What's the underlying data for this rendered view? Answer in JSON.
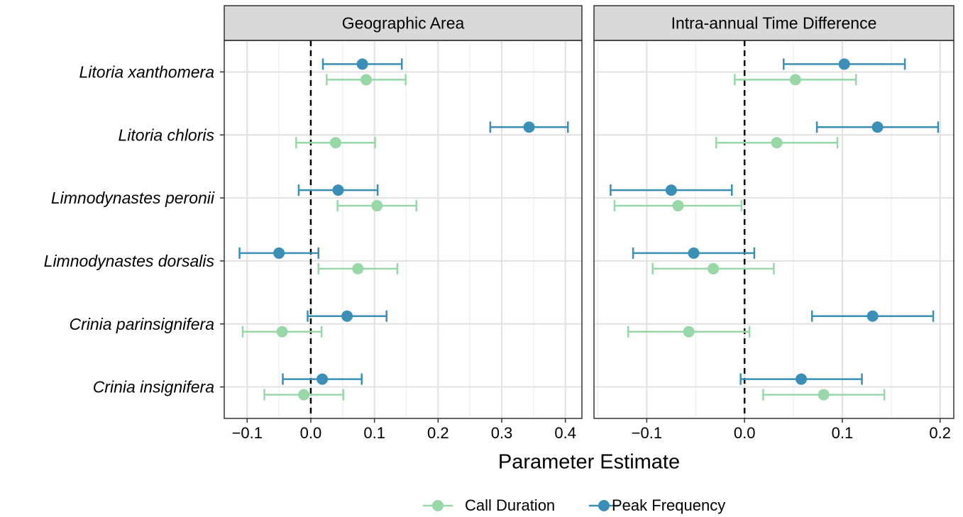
{
  "chart_data": [
    {
      "type": "pointrange",
      "title": "Geographic Area",
      "xlabel": "Parameter Estimate",
      "categories": [
        "Litoria xanthomera",
        "Litoria chloris",
        "Limnodynastes peronii",
        "Limnodynastes dorsalis",
        "Crinia parinsignifera",
        "Crinia insignifera"
      ],
      "series": [
        {
          "name": "Call Duration",
          "color": "#98d8a8",
          "values": [
            0.087,
            0.039,
            0.104,
            0.074,
            -0.045,
            -0.011
          ],
          "errors": [
            0.062,
            0.062,
            0.062,
            0.062,
            0.062,
            0.062
          ]
        },
        {
          "name": "Peak Frequency",
          "color": "#3a8fb7",
          "values": [
            0.081,
            0.343,
            0.043,
            -0.05,
            0.057,
            0.018
          ],
          "errors": [
            0.062,
            0.061,
            0.062,
            0.062,
            0.062,
            0.062
          ]
        }
      ],
      "xlim": [
        -0.136,
        0.426
      ],
      "xticks": [
        {
          "value": -0.1,
          "label": "−0.1"
        },
        {
          "value": 0,
          "label": "0.0"
        },
        0.1,
        0.2,
        0.3,
        0.4
      ],
      "xminor": [
        -0.05,
        0.05,
        0.15,
        0.25,
        0.35
      ],
      "vline": 0,
      "grid": true
    },
    {
      "type": "pointrange",
      "title": "Intra-annual Time Difference",
      "series": [
        {
          "name": "Call Duration",
          "color": "#98d8a8",
          "values": [
            0.052,
            0.033,
            -0.068,
            -0.032,
            -0.057,
            0.081
          ],
          "errors": [
            0.062,
            0.062,
            0.065,
            0.062,
            0.062,
            0.062
          ]
        },
        {
          "name": "Peak Frequency",
          "color": "#3a8fb7",
          "values": [
            0.102,
            0.136,
            -0.075,
            -0.052,
            0.131,
            0.058
          ],
          "errors": [
            0.062,
            0.062,
            0.062,
            0.062,
            0.062,
            0.062
          ]
        }
      ],
      "xlim": [
        -0.154,
        0.214
      ],
      "xticks": [
        {
          "value": -0.1,
          "label": "−0.1"
        },
        {
          "value": 0,
          "label": "0.0"
        },
        0.1,
        0.2
      ],
      "xminor": [
        -0.15,
        -0.05,
        0.05,
        0.15
      ],
      "vline": 0,
      "grid": true
    }
  ]
}
